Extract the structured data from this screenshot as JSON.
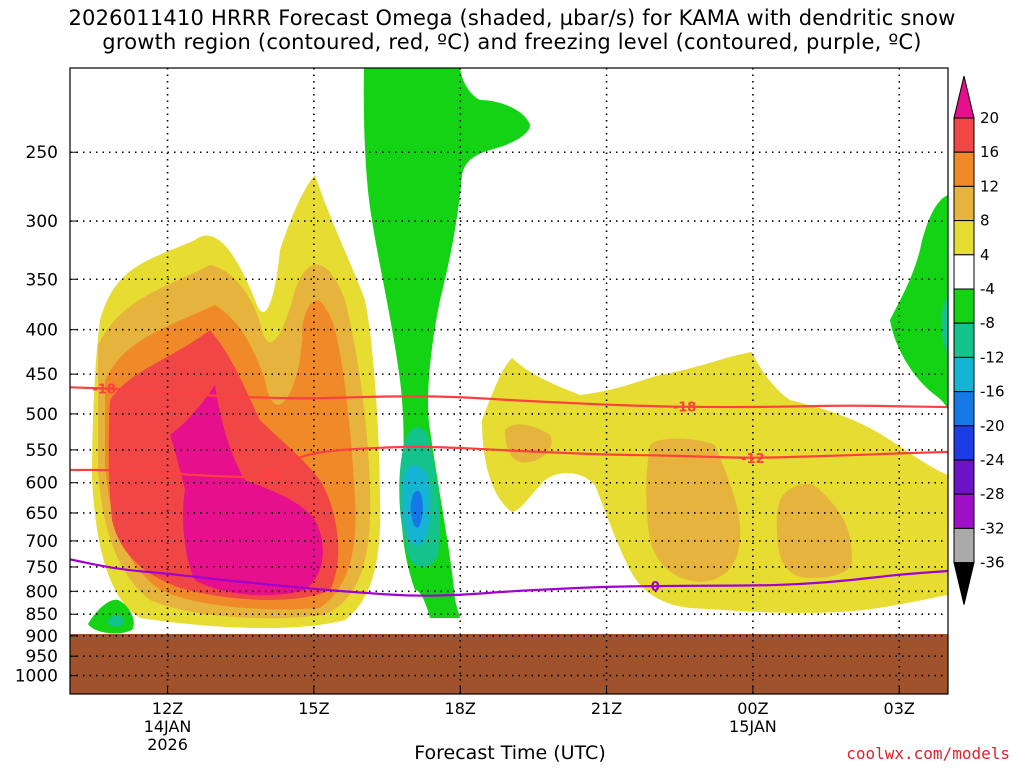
{
  "title": {
    "line1": "2026011410 HRRR Forecast Omega (shaded, µbar/s) for KAMA with dendritic snow",
    "line2": "growth region (contoured, red, ºC) and freezing level (contoured, purple, ºC)"
  },
  "credit": "coolwx.com/models",
  "chart_data": {
    "type": "contour",
    "title": "2026011410 HRRR Forecast Omega (shaded, µbar/s) for KAMA with dendritic snow growth region (contoured, red, ºC) and freezing level (contoured, purple, ºC)",
    "xlabel": "Forecast Time (UTC)",
    "ylabel": "",
    "x_axis": {
      "unit": "forecast hour from 2026-01-14 10Z",
      "range": [
        10,
        28
      ],
      "ticks": [
        {
          "hour": 12,
          "label": "12Z",
          "sub1": "14JAN",
          "sub2": "2026"
        },
        {
          "hour": 15,
          "label": "15Z",
          "sub1": "",
          "sub2": ""
        },
        {
          "hour": 18,
          "label": "18Z",
          "sub1": "",
          "sub2": ""
        },
        {
          "hour": 21,
          "label": "21Z",
          "sub1": "",
          "sub2": ""
        },
        {
          "hour": 24,
          "label": "00Z",
          "sub1": "15JAN",
          "sub2": ""
        },
        {
          "hour": 27,
          "label": "03Z",
          "sub1": "",
          "sub2": ""
        }
      ]
    },
    "y_axis": {
      "unit": "hPa",
      "log_scale": true,
      "inverted": true,
      "range": [
        1050,
        200
      ],
      "ticks": [
        250,
        300,
        350,
        400,
        450,
        500,
        550,
        600,
        650,
        700,
        750,
        800,
        850,
        900,
        950,
        1000
      ]
    },
    "grid": true,
    "ground_below_hPa": 895,
    "ground_color": "#a0522d",
    "colorbar": {
      "labels": [
        "20",
        "16",
        "12",
        "8",
        "4",
        "-4",
        "-8",
        "-12",
        "-16",
        "-20",
        "-24",
        "-28",
        "-32",
        "-36"
      ],
      "colors": [
        "#e60f8c",
        "#f04646",
        "#f08a28",
        "#e6b43c",
        "#e6dc32",
        "#ffffff",
        "#14d214",
        "#14c38c",
        "#14b4d2",
        "#1478e6",
        "#1e3ce6",
        "#6e14c8",
        "#a00fc8",
        "#aaaaaa",
        "#000000"
      ]
    },
    "contours": [
      {
        "name": "-18",
        "color": "#ff4040",
        "label": "-18",
        "points": [
          [
            10,
            466
          ],
          [
            11,
            468
          ],
          [
            12,
            472
          ],
          [
            13,
            477
          ],
          [
            14,
            479
          ],
          [
            15,
            480
          ],
          [
            16,
            478
          ],
          [
            17,
            477
          ],
          [
            18,
            478
          ],
          [
            19,
            482
          ],
          [
            20,
            485
          ],
          [
            21,
            488
          ],
          [
            22,
            490
          ],
          [
            23,
            491
          ],
          [
            24,
            491
          ],
          [
            25,
            490
          ],
          [
            26,
            489
          ],
          [
            27,
            490
          ],
          [
            28,
            491
          ]
        ]
      },
      {
        "name": "-12",
        "color": "#ff4040",
        "label": "-12",
        "points": [
          [
            10,
            580
          ],
          [
            11,
            580
          ],
          [
            12,
            585
          ],
          [
            13,
            590
          ],
          [
            14,
            592
          ],
          [
            14.6,
            562
          ],
          [
            15.2,
            552
          ],
          [
            16,
            548
          ],
          [
            17,
            545
          ],
          [
            18,
            547
          ],
          [
            19,
            551
          ],
          [
            20,
            554
          ],
          [
            21,
            557
          ],
          [
            22,
            558
          ],
          [
            23,
            560
          ],
          [
            24,
            562
          ],
          [
            25,
            560
          ],
          [
            26,
            558
          ],
          [
            27,
            555
          ],
          [
            28,
            553
          ]
        ]
      },
      {
        "name": "0",
        "color": "#a000d0",
        "label": "0",
        "points": [
          [
            10,
            735
          ],
          [
            11,
            755
          ],
          [
            12,
            763
          ],
          [
            13,
            775
          ],
          [
            14,
            785
          ],
          [
            15,
            795
          ],
          [
            16,
            803
          ],
          [
            17,
            810
          ],
          [
            18,
            808
          ],
          [
            19,
            800
          ],
          [
            20,
            795
          ],
          [
            21,
            790
          ],
          [
            22,
            789
          ],
          [
            23,
            788
          ],
          [
            24,
            788
          ],
          [
            25,
            785
          ],
          [
            26,
            777
          ],
          [
            27,
            765
          ],
          [
            28,
            758
          ]
        ]
      }
    ]
  }
}
